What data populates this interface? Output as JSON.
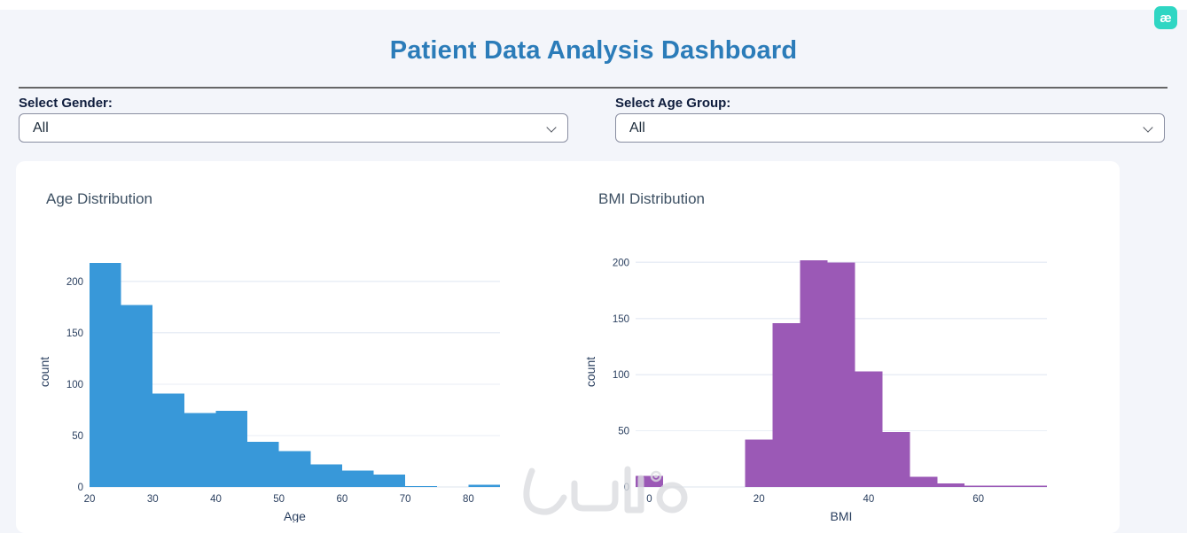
{
  "app": {
    "title": "Patient Data Analysis Dashboard",
    "badge": "æ",
    "watermark_text": "خمسات"
  },
  "filters": {
    "gender": {
      "label": "Select Gender:",
      "value": "All"
    },
    "age_group": {
      "label": "Select Age Group:",
      "value": "All"
    }
  },
  "colors": {
    "title_blue": "#2b7cb9",
    "badge_teal": "#2fd6c3",
    "histogram_blue": "#3898d9",
    "histogram_purple": "#9b59b6",
    "page_bg": "#f3f5fa",
    "grid_line": "#e9eef6",
    "axis_text": "#2a3f5f"
  },
  "chart_data": [
    {
      "type": "histogram",
      "title": "Age Distribution",
      "xlabel": "Age",
      "ylabel": "count",
      "color": "#3898d9",
      "bin_start": 20,
      "bin_width": 5,
      "counts": [
        218,
        177,
        91,
        72,
        74,
        44,
        35,
        22,
        16,
        12,
        1,
        0,
        2
      ],
      "xlim": [
        20,
        85
      ],
      "ylim": [
        0,
        224
      ],
      "xticks": [
        20,
        30,
        40,
        50,
        60,
        70,
        80
      ],
      "yticks": [
        0,
        50,
        100,
        150,
        200
      ],
      "grid": "horizontal",
      "legend": "none"
    },
    {
      "type": "histogram",
      "title": "BMI Distribution",
      "xlabel": "BMI",
      "ylabel": "count",
      "color": "#9b59b6",
      "bin_start": -2.5,
      "bin_width": 5,
      "counts": [
        10,
        0,
        0,
        0,
        42,
        146,
        202,
        200,
        103,
        49,
        9,
        3,
        1,
        1,
        1
      ],
      "xlim": [
        -2.5,
        72.5
      ],
      "ylim": [
        0,
        205
      ],
      "xticks": [
        0,
        20,
        40,
        60
      ],
      "yticks": [
        0,
        50,
        100,
        150,
        200
      ],
      "grid": "horizontal",
      "legend": "none"
    }
  ]
}
